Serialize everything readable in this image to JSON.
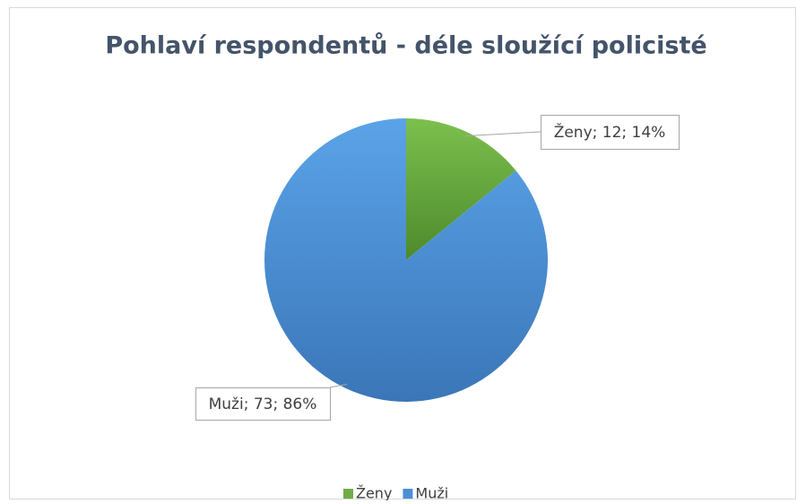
{
  "chart_data": {
    "type": "pie",
    "title": "Pohlaví respondentů - déle sloužící policisté",
    "categories": [
      "Ženy",
      "Muži"
    ],
    "values": [
      12,
      73
    ],
    "value_labels": [
      "Ženy; 12; 14%",
      "Muži; 73; 86%"
    ],
    "colors": [
      "#70ad47",
      "#4a8fd6"
    ],
    "legend": "bottom"
  }
}
